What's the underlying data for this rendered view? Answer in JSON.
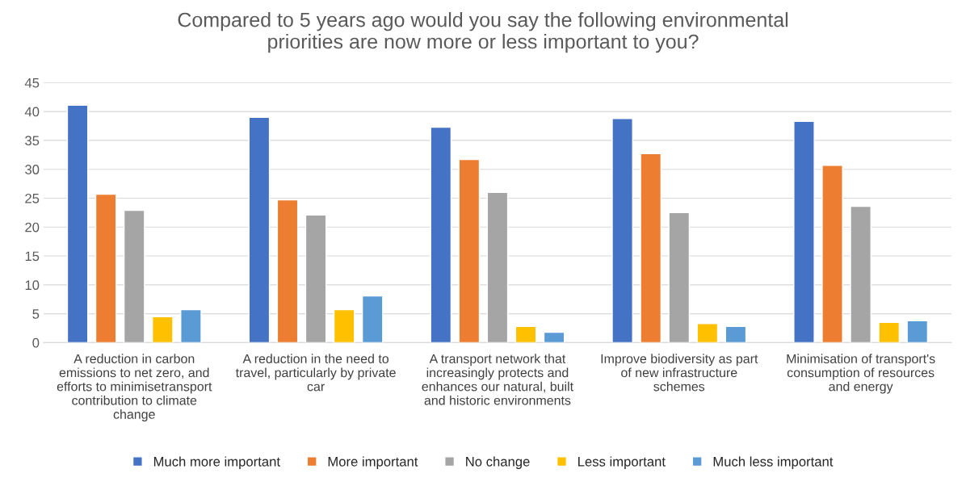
{
  "chart_data": {
    "type": "bar",
    "title": "Compared to 5 years ago would you say the following environmental\npriorities are now more or less important to you?",
    "categories": [
      "A reduction in carbon\nemissions to net zero, and\nefforts to minimisetransport\ncontribution to climate\nchange",
      "A reduction in the need to\ntravel, particularly by private\ncar",
      "A transport network that\nincreasingly protects and\nenhances our natural, built\nand historic environments",
      "Improve biodiversity as part\nof new infrastructure\nschemes",
      "Minimisation of transport's\nconsumption of resources\nand energy"
    ],
    "series": [
      {
        "name": "Much more important",
        "color": "#4472c4",
        "values": [
          41.1,
          39.0,
          37.3,
          38.8,
          38.3
        ]
      },
      {
        "name": "More important",
        "color": "#ed7d31",
        "values": [
          25.7,
          24.7,
          31.7,
          32.7,
          30.7
        ]
      },
      {
        "name": "No change",
        "color": "#a5a5a5",
        "values": [
          22.9,
          22.1,
          26.0,
          22.5,
          23.6
        ]
      },
      {
        "name": "Less important",
        "color": "#ffc000",
        "values": [
          4.5,
          5.7,
          2.8,
          3.3,
          3.5
        ]
      },
      {
        "name": "Much less important",
        "color": "#5b9bd5",
        "values": [
          5.7,
          8.1,
          1.8,
          2.8,
          3.8
        ]
      }
    ],
    "ylim": [
      0,
      45
    ],
    "yticks": [
      0,
      5,
      10,
      15,
      20,
      25,
      30,
      35,
      40,
      45
    ],
    "grid": "y",
    "legend": "bottom"
  }
}
